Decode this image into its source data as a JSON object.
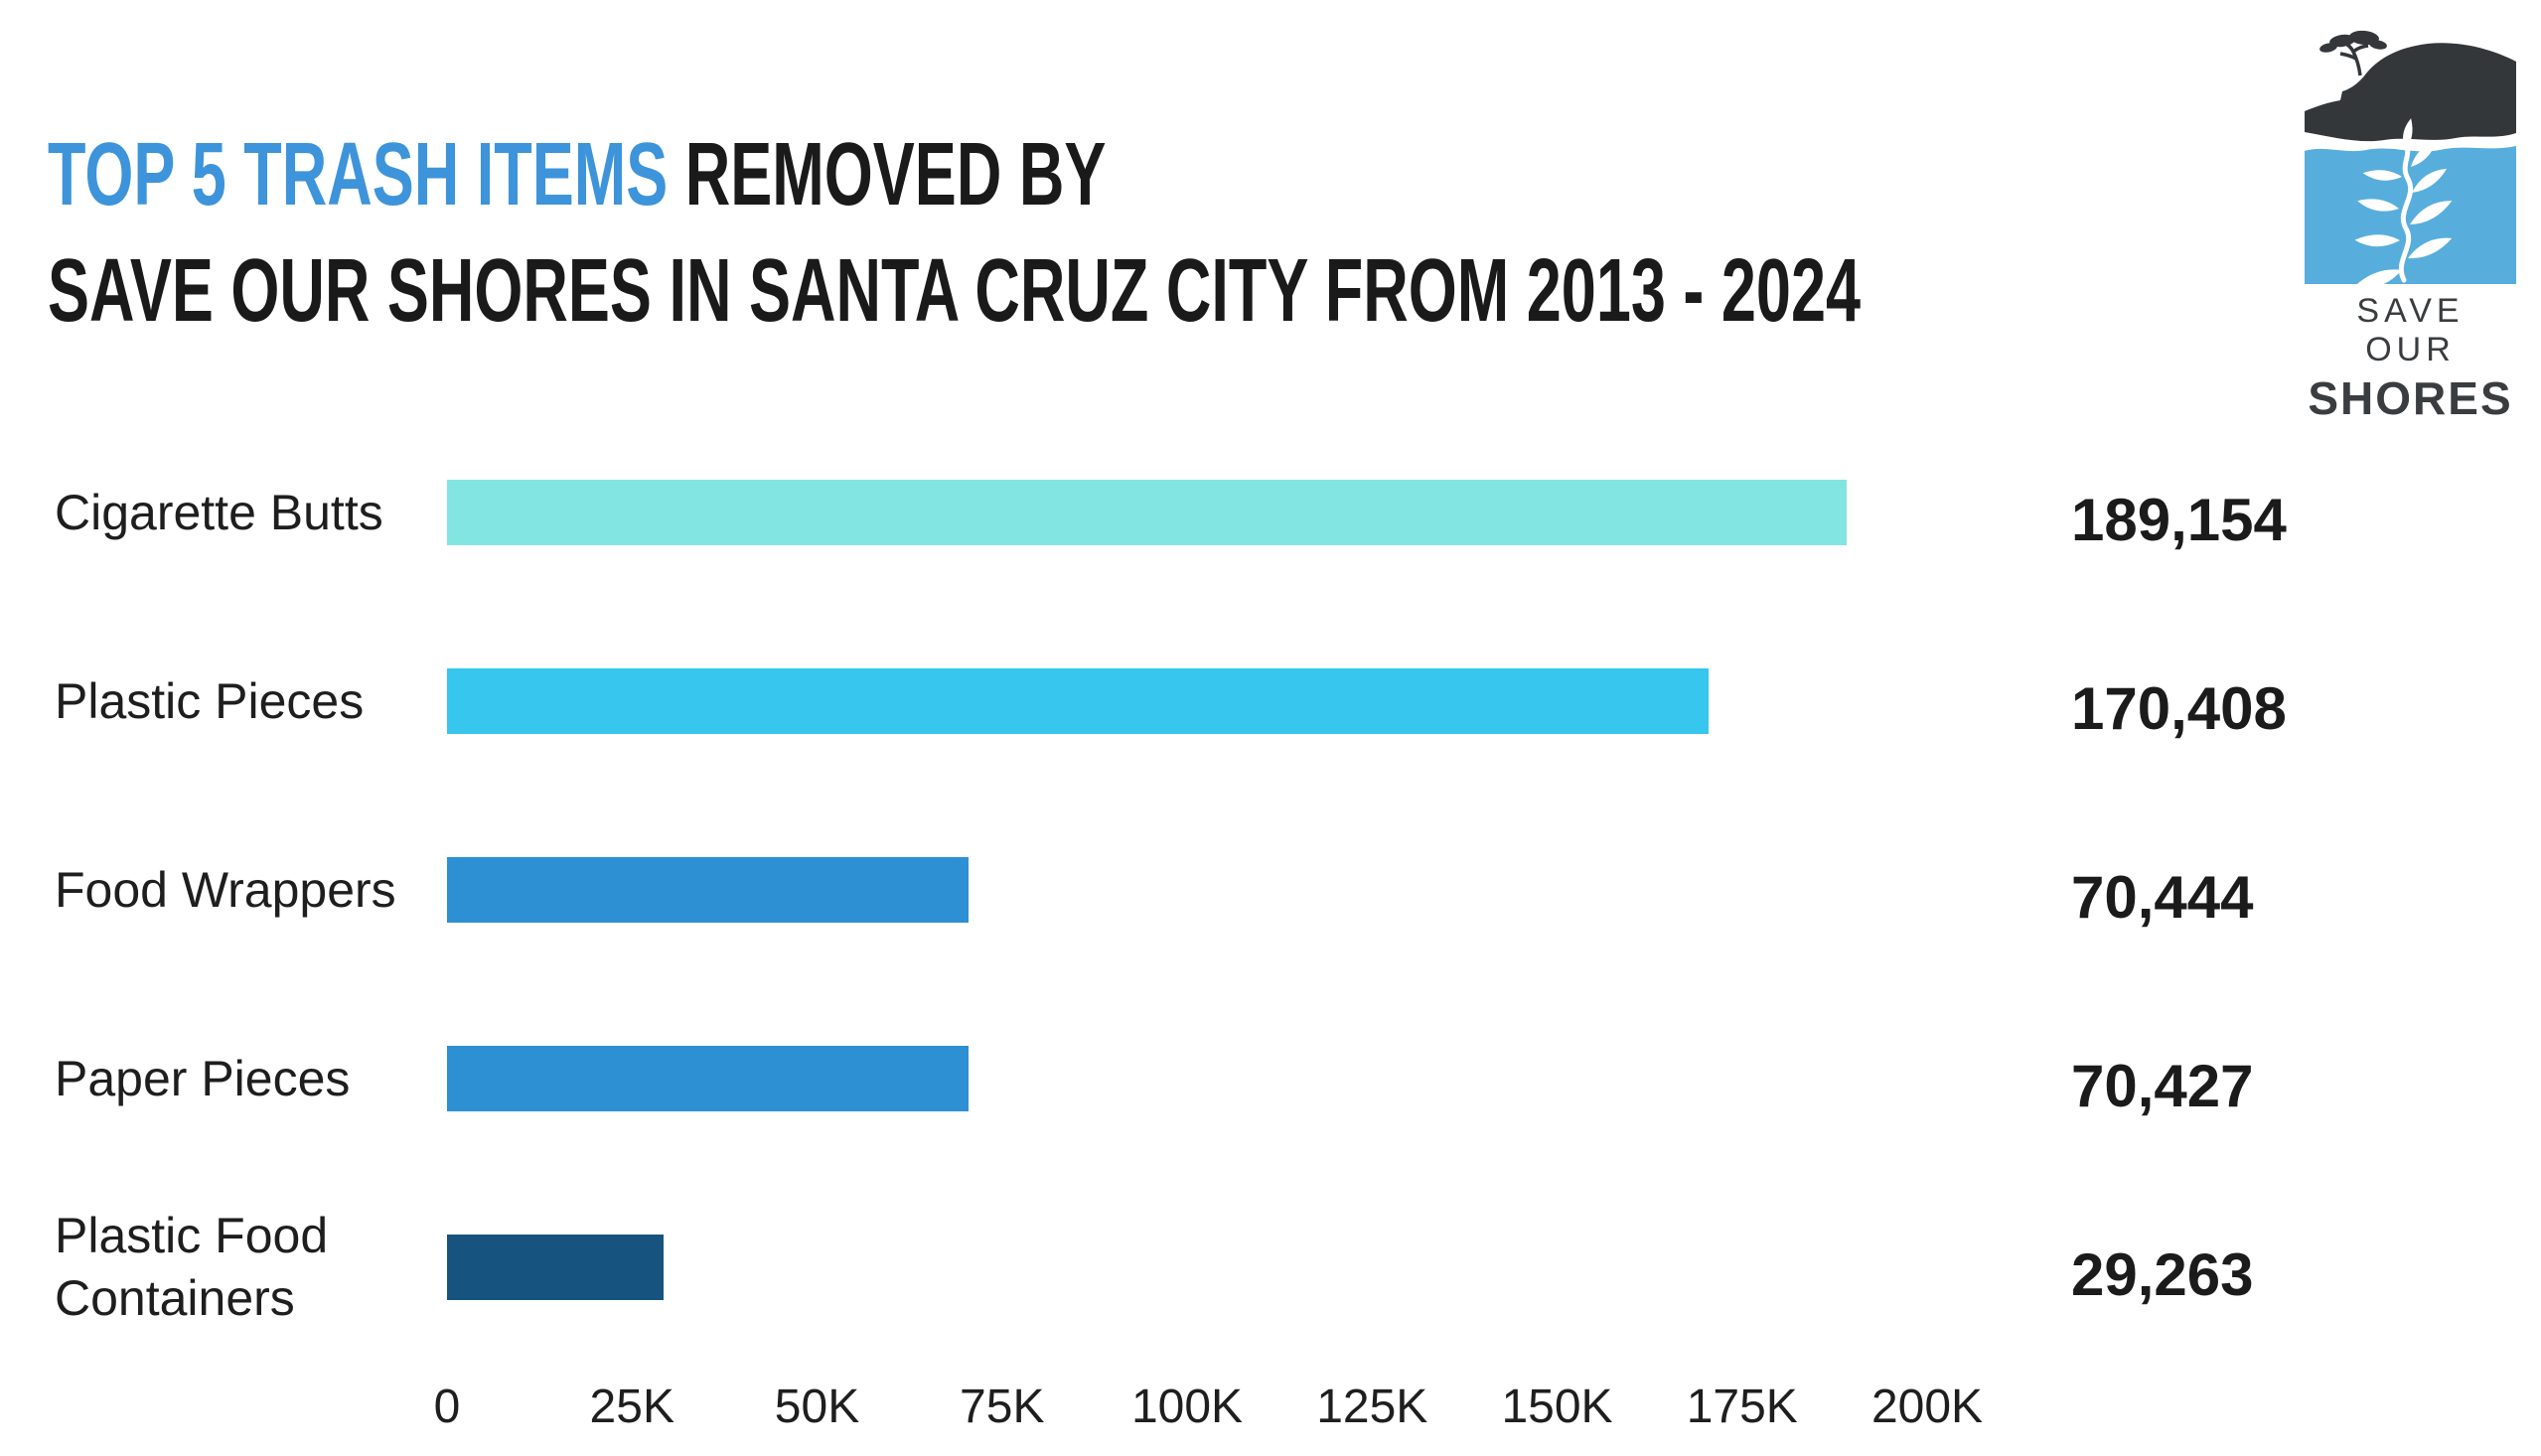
{
  "title": {
    "highlight": "TOP 5 TRASH ITEMS",
    "rest_line1": " REMOVED BY",
    "line2": "SAVE OUR SHORES IN SANTA CRUZ CITY FROM 2013 - 2024"
  },
  "logo": {
    "line1": "SAVE OUR",
    "line2": "SHORES"
  },
  "colors": {
    "title_highlight": "#3d94da",
    "text_dark": "#1c1c1c",
    "logo_dark": "#33373a",
    "logo_water_blue": "#57aedc",
    "bar_cyan": "#82e5e2",
    "bar_sky": "#36c6ee",
    "bar_medium_blue": "#2d90d3",
    "bar_navy": "#16537f"
  },
  "chart_data": {
    "type": "bar",
    "orientation": "horizontal",
    "title": "TOP 5 TRASH ITEMS REMOVED BY SAVE OUR SHORES IN SANTA CRUZ CITY FROM 2013 - 2024",
    "categories": [
      "Cigarette Butts",
      "Plastic Pieces",
      "Food Wrappers",
      "Paper Pieces",
      "Plastic Food Containers"
    ],
    "values": [
      189154,
      170408,
      70444,
      70427,
      29263
    ],
    "value_labels": [
      "189,154",
      "170,408",
      "70,444",
      "70,427",
      "29,263"
    ],
    "bar_colors": [
      "#82e5e2",
      "#36c6ee",
      "#2d90d3",
      "#2d90d3",
      "#16537f"
    ],
    "xlabel": "",
    "ylabel": "",
    "xlim": [
      0,
      200000
    ],
    "x_ticks": [
      "0",
      "25K",
      "50K",
      "75K",
      "100K",
      "125K",
      "150K",
      "175K",
      "200K"
    ],
    "x_tick_values": [
      0,
      25000,
      50000,
      75000,
      100000,
      125000,
      150000,
      175000,
      200000
    ],
    "grid": false,
    "legend": false,
    "value_labels_position": "right-of-bars"
  }
}
